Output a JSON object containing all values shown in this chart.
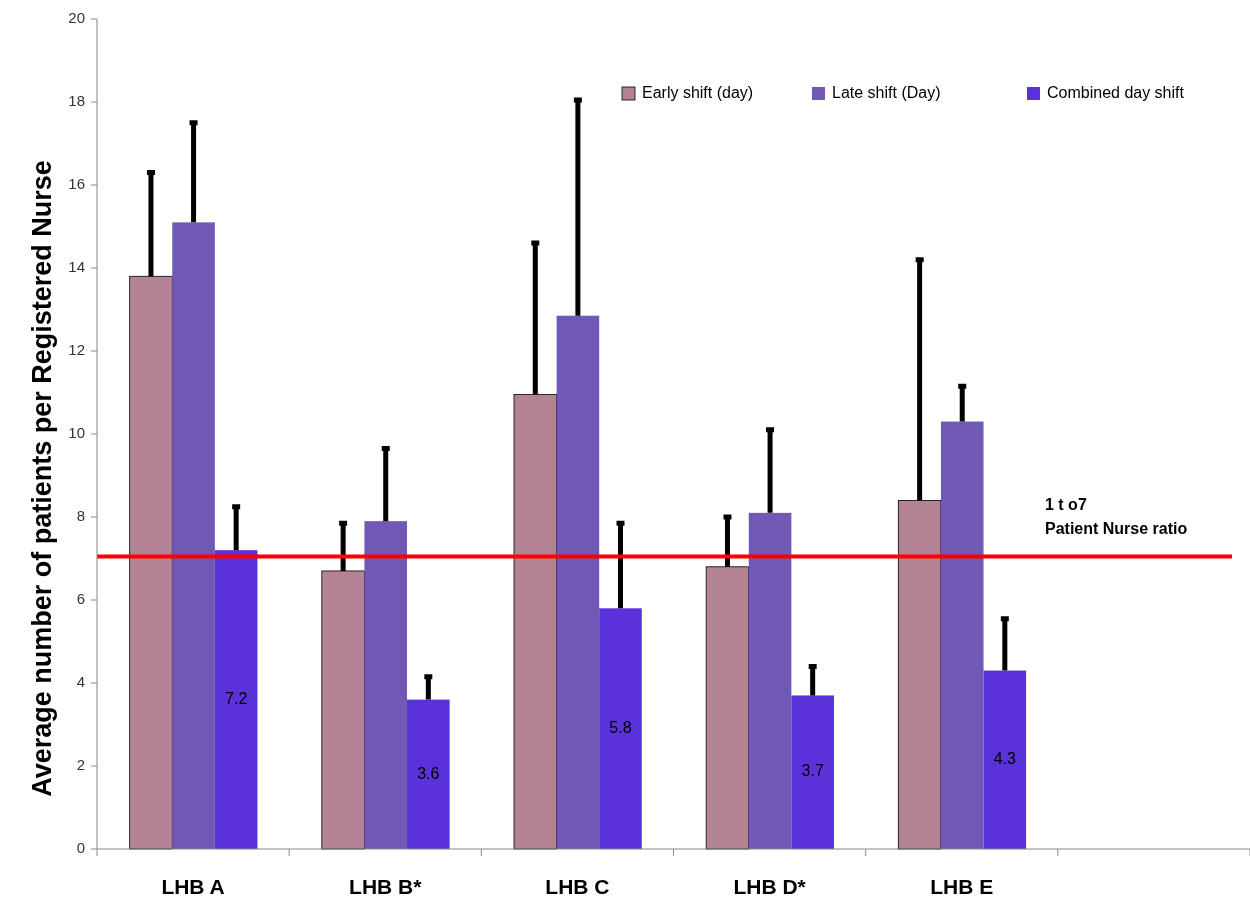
{
  "chart_data": {
    "type": "bar",
    "ylabel": "Average number of patients per Registered Nurse",
    "categories": [
      "LHB A",
      "LHB B*",
      "LHB C",
      "LHB D*",
      "LHB E",
      null
    ],
    "series": [
      {
        "name": "Early shift (day)",
        "color": "#b48496",
        "values": [
          13.8,
          6.7,
          10.95,
          6.8,
          8.4,
          null
        ],
        "errors": [
          [
            13.8,
            16.3
          ],
          [
            6.7,
            7.85
          ],
          [
            10.95,
            14.6
          ],
          [
            6.8,
            8.0
          ],
          [
            8.4,
            14.2
          ],
          null
        ]
      },
      {
        "name": "Late shift (Day)",
        "color": "#7059b5",
        "values": [
          15.1,
          7.9,
          12.85,
          8.1,
          10.3,
          null
        ],
        "errors": [
          [
            15.1,
            17.5
          ],
          [
            7.9,
            9.65
          ],
          [
            12.85,
            18.05
          ],
          [
            8.1,
            10.1
          ],
          [
            10.3,
            11.15
          ],
          null
        ]
      },
      {
        "name": "Combined day shift",
        "color": "#5b32d9",
        "values": [
          7.2,
          3.6,
          5.8,
          3.7,
          4.3,
          null
        ],
        "errors": [
          [
            7.2,
            8.25
          ],
          [
            3.6,
            4.15
          ],
          [
            5.8,
            7.85
          ],
          [
            3.7,
            4.4
          ],
          [
            4.3,
            5.55
          ],
          null
        ],
        "value_labels": [
          "7.2",
          "3.6",
          "5.8",
          "3.7",
          "4.3",
          null
        ]
      }
    ],
    "ylim": [
      0,
      20
    ],
    "yticks": [
      0,
      2,
      4,
      6,
      8,
      10,
      12,
      14,
      16,
      18,
      20
    ],
    "ref_lines": [
      {
        "axis": "y",
        "value": 7.05,
        "label": "1 t o7\nPatient Nurse ratio",
        "color": "#ff0000"
      }
    ],
    "legend": "top right",
    "grid": false
  }
}
